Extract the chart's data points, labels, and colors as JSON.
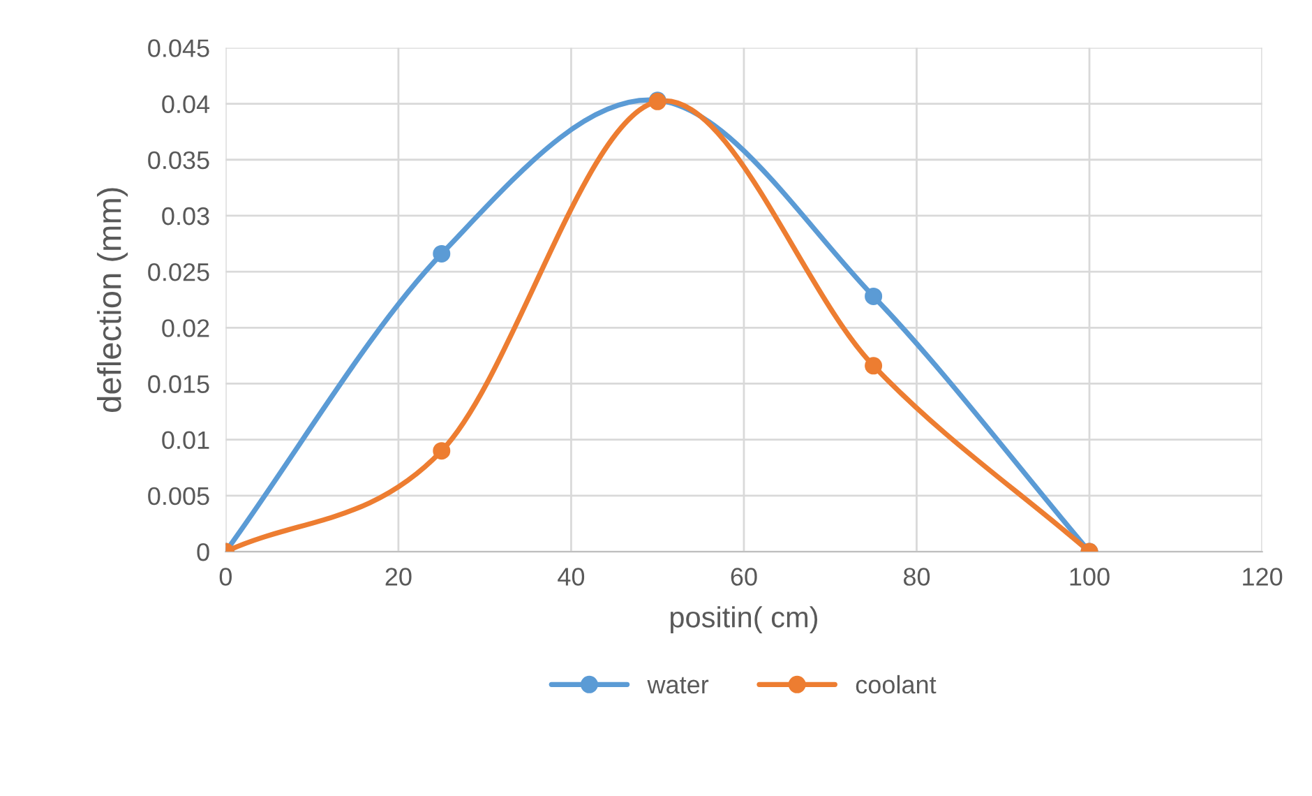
{
  "chart_data": {
    "type": "line",
    "xlabel": "positin( cm)",
    "ylabel": "deflection (mm)",
    "x": [
      0,
      25,
      50,
      75,
      100
    ],
    "series": [
      {
        "name": "water",
        "color": "#5b9bd5",
        "values": [
          0,
          0.0266,
          0.0403,
          0.0228,
          0
        ]
      },
      {
        "name": "coolant",
        "color": "#ed7d31",
        "values": [
          0,
          0.009,
          0.0402,
          0.0166,
          0
        ]
      }
    ],
    "xlim": [
      0,
      120
    ],
    "xticks": [
      0,
      20,
      40,
      60,
      80,
      100,
      120
    ],
    "ylim": [
      0,
      0.045
    ],
    "yticks": [
      0,
      0.005,
      0.01,
      0.015,
      0.02,
      0.025,
      0.03,
      0.035,
      0.04,
      0.045
    ],
    "grid": true,
    "legend": "bottom",
    "marker": "circle",
    "line_style": "solid"
  }
}
